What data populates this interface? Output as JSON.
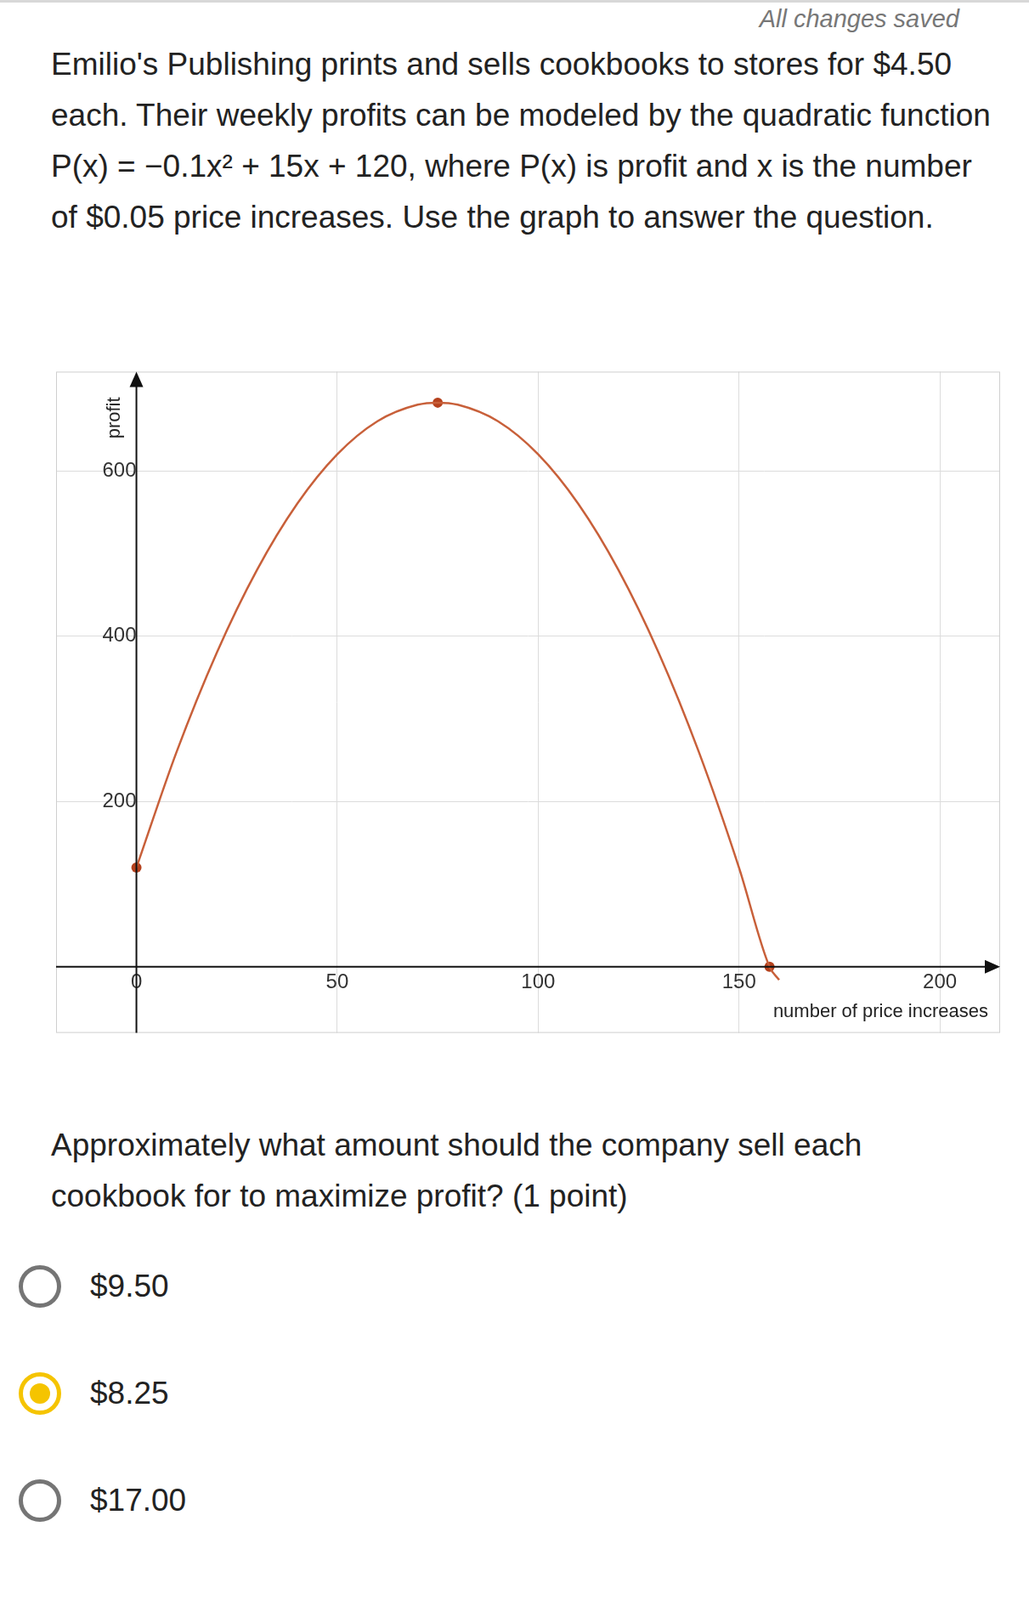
{
  "header": {
    "status": "All changes saved"
  },
  "question": "Emilio's Publishing prints and sells cookbooks to stores for $4.50 each. Their weekly profits can be modeled by the quadratic function P(x) = −0.1x² + 15x + 120, where P(x) is profit and x is the number of $0.05 price increases. Use the graph to answer the question.",
  "chart_data": {
    "type": "line",
    "x_label": "number of price increases",
    "y_label": "profit",
    "xlim": [
      -20,
      215
    ],
    "ylim": [
      -80,
      720
    ],
    "xticks": [
      0,
      50,
      100,
      150,
      200
    ],
    "yticks": [
      200,
      400,
      600
    ],
    "grid": true,
    "series": [
      {
        "color": "#c8603a",
        "marker": "none",
        "line_style": "solid",
        "x": [
          0,
          10,
          20,
          30,
          40,
          50,
          60,
          70,
          75,
          80,
          90,
          100,
          110,
          120,
          130,
          140,
          150,
          157.6,
          160
        ],
        "values": [
          120,
          260,
          380,
          480,
          560,
          620,
          660,
          680,
          682.5,
          680,
          660,
          620,
          560,
          480,
          380,
          260,
          120,
          0,
          -16
        ]
      },
      {
        "type": "scatter",
        "color": "#b5411d",
        "marker": "circle",
        "x": [
          0,
          75,
          157.6
        ],
        "values": [
          120,
          682.5,
          0
        ]
      }
    ]
  },
  "prompt": "Approximately what amount should the company sell each cookbook for to maximize profit? (1 point)",
  "options": [
    {
      "label": "$9.50",
      "selected": false
    },
    {
      "label": "$8.25",
      "selected": true
    },
    {
      "label": "$17.00",
      "selected": false
    }
  ]
}
